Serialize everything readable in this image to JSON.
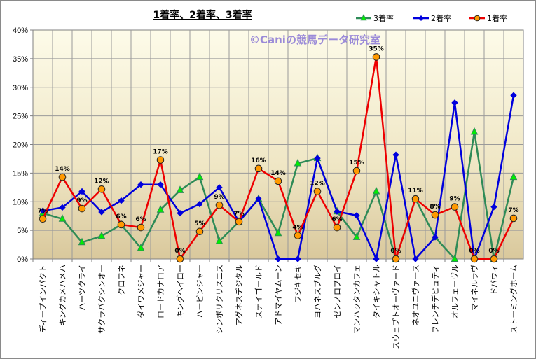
{
  "chart_data": {
    "type": "line",
    "title": "1着率、2着率、3着率",
    "watermark": "©Caniの競馬データ研究室",
    "ylim": [
      0,
      40
    ],
    "yticks": [
      "0%",
      "5%",
      "10%",
      "15%",
      "20%",
      "25%",
      "30%",
      "35%",
      "40%"
    ],
    "categories": [
      "ディープインパクト",
      "キングカメハメハ",
      "ハーツクライ",
      "サクラバクシンオー",
      "クロフネ",
      "ダイワメジャー",
      "ロードカナロア",
      "キングヘイロー",
      "ハービンジャー",
      "シンボリクリスエス",
      "アグネスデジタル",
      "ステイゴールド",
      "アドマイヤムーン",
      "フジキセキ",
      "ヨハネスブルグ",
      "ゼンノロブロイ",
      "マンハッタンカフェ",
      "タイキシャトル",
      "スウェプトオーヴァード",
      "ネオユニヴァース",
      "フレンチデピュティ",
      "オルフェーヴル",
      "マイネルラヴ",
      "ドバウィ",
      "ストーミングホーム"
    ],
    "series": [
      {
        "name": "3着率",
        "color": "#2e8b57",
        "marker": "triangle",
        "marker_fill": "#00ee00",
        "values": [
          8.0,
          7.0,
          2.9,
          4.0,
          6.0,
          1.9,
          8.6,
          12.0,
          14.3,
          3.1,
          6.5,
          10.5,
          4.5,
          16.7,
          17.6,
          8.3,
          3.8,
          11.8,
          0.0,
          10.5,
          3.8,
          0.0,
          22.2,
          0.0,
          14.3
        ]
      },
      {
        "name": "2着率",
        "color": "#0000dd",
        "marker": "diamond",
        "marker_fill": "#0000dd",
        "values": [
          8.4,
          9.0,
          11.8,
          8.2,
          10.2,
          13.0,
          13.0,
          8.0,
          9.6,
          12.5,
          6.5,
          10.5,
          0.0,
          0.0,
          17.6,
          8.3,
          7.6,
          0.0,
          18.2,
          0.0,
          3.8,
          27.3,
          0.0,
          9.1,
          28.6
        ]
      },
      {
        "name": "1着率",
        "color": "#ee0000",
        "marker": "circle",
        "marker_fill": "#ff9900",
        "values": [
          7.0,
          14.3,
          8.8,
          12.2,
          6.0,
          5.5,
          17.3,
          0.0,
          4.8,
          9.4,
          6.5,
          15.8,
          13.6,
          4.1,
          11.8,
          5.5,
          15.4,
          35.3,
          0.0,
          10.5,
          7.7,
          9.1,
          0.0,
          0.0,
          7.1
        ]
      }
    ],
    "data_labels": [
      "7%",
      "14%",
      "9%",
      "12%",
      "6%",
      "6%",
      "17%",
      "0%",
      "5%",
      "9%",
      "7%",
      "16%",
      "14%",
      "4%",
      "12%",
      "6%",
      "15%",
      "35%",
      "0%",
      "11%",
      "8%",
      "9%",
      "0%",
      "0%",
      "7%"
    ],
    "legend": {
      "placement": "top-right",
      "order": [
        "3着率",
        "2着率",
        "1着率"
      ]
    },
    "grid": true
  }
}
